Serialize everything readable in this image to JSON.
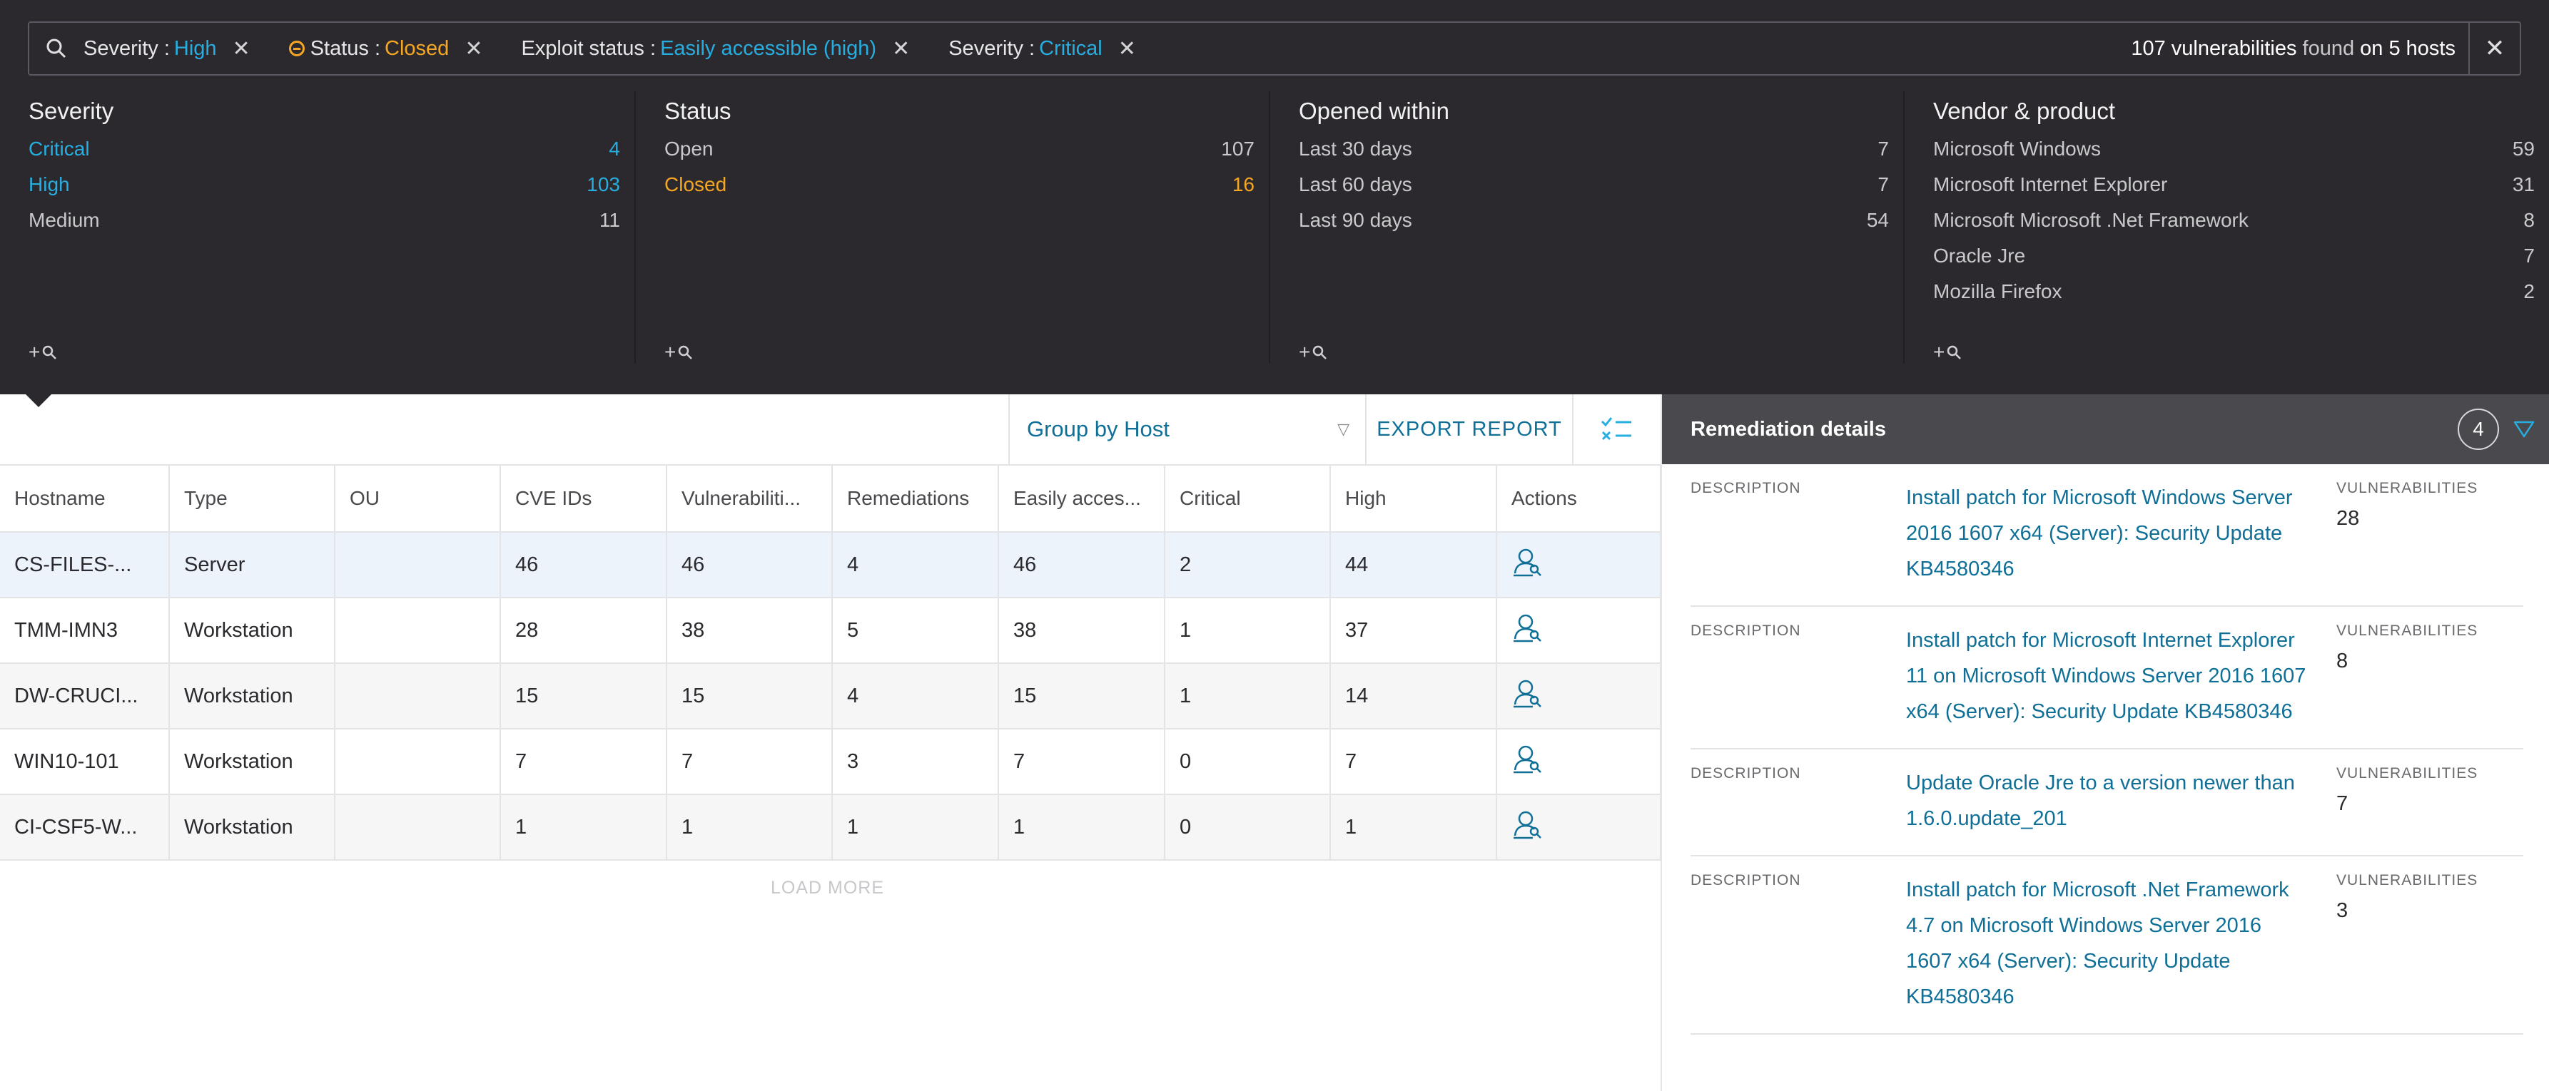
{
  "filters": {
    "chips": [
      {
        "key": "Severity",
        "value": "High",
        "color": "#27aee0",
        "icon": null
      },
      {
        "key": "Status",
        "value": "Closed",
        "color": "#f5a623",
        "icon": "status-closed-icon"
      },
      {
        "key": "Exploit status",
        "value": "Easily accessible (high)",
        "color": "#27aee0",
        "icon": null
      },
      {
        "key": "Severity",
        "value": "Critical",
        "color": "#27aee0",
        "icon": null
      }
    ],
    "summary": {
      "count": "107 vulnerabilities",
      "mid": "found",
      "tail": "on 5 hosts"
    }
  },
  "facets": [
    {
      "title": "Severity",
      "rows": [
        {
          "label": "Critical",
          "count": "4",
          "active": true,
          "color": "#27aee0"
        },
        {
          "label": "High",
          "count": "103",
          "active": true,
          "color": "#27aee0"
        },
        {
          "label": "Medium",
          "count": "11",
          "active": false
        }
      ]
    },
    {
      "title": "Status",
      "rows": [
        {
          "label": "Open",
          "count": "107",
          "active": false
        },
        {
          "label": "Closed",
          "count": "16",
          "active": true,
          "color": "#f5a623"
        }
      ]
    },
    {
      "title": "Opened within",
      "rows": [
        {
          "label": "Last 30 days",
          "count": "7",
          "active": false
        },
        {
          "label": "Last 60 days",
          "count": "7",
          "active": false
        },
        {
          "label": "Last 90 days",
          "count": "54",
          "active": false
        }
      ]
    },
    {
      "title": "Vendor & product",
      "rows": [
        {
          "label": "Microsoft Windows",
          "count": "59",
          "active": false
        },
        {
          "label": "Microsoft Internet Explorer",
          "count": "31",
          "active": false
        },
        {
          "label": "Microsoft Microsoft .Net Framework",
          "count": "8",
          "active": false
        },
        {
          "label": "Oracle Jre",
          "count": "7",
          "active": false
        },
        {
          "label": "Mozilla Firefox",
          "count": "2",
          "active": false
        }
      ]
    }
  ],
  "facet_add_label": "+",
  "toolbar": {
    "group_by": "Group by Host",
    "export": "EXPORT REPORT"
  },
  "table": {
    "columns": [
      "Hostname",
      "Type",
      "OU",
      "CVE IDs",
      "Vulnerabiliti...",
      "Remediations",
      "Easily acces...",
      "Critical",
      "High",
      "Actions"
    ],
    "rows": [
      [
        "CS-FILES-...",
        "Server",
        "",
        "46",
        "46",
        "4",
        "46",
        "2",
        "44"
      ],
      [
        "TMM-IMN3",
        "Workstation",
        "",
        "28",
        "38",
        "5",
        "38",
        "1",
        "37"
      ],
      [
        "DW-CRUCI...",
        "Workstation",
        "",
        "15",
        "15",
        "4",
        "15",
        "1",
        "14"
      ],
      [
        "WIN10-101",
        "Workstation",
        "",
        "7",
        "7",
        "3",
        "7",
        "0",
        "7"
      ],
      [
        "CI-CSF5-W...",
        "Workstation",
        "",
        "1",
        "1",
        "1",
        "1",
        "0",
        "1"
      ]
    ],
    "load_more": "LOAD MORE"
  },
  "remediation": {
    "title": "Remediation details",
    "count": "4",
    "desc_label": "DESCRIPTION",
    "vuln_label": "VULNERABILITIES",
    "items": [
      {
        "description": "Install patch for Microsoft Windows Server 2016 1607 x64 (Server): Security Update KB4580346",
        "vulnerabilities": "28"
      },
      {
        "description": "Install patch for Microsoft Internet Explorer 11 on Microsoft Windows Server 2016 1607 x64 (Server): Security Update KB4580346",
        "vulnerabilities": "8"
      },
      {
        "description": "Update Oracle Jre to a version newer than 1.6.0.update_201",
        "vulnerabilities": "7"
      },
      {
        "description": "Install patch for Microsoft .Net Framework 4.7 on Microsoft Windows Server 2016 1607 x64 (Server): Security Update KB4580346",
        "vulnerabilities": "3"
      }
    ]
  },
  "colors": {
    "accent": "#27aee0",
    "link": "#0f6f97",
    "warning": "#f5a623",
    "panel": "#2b292e"
  }
}
